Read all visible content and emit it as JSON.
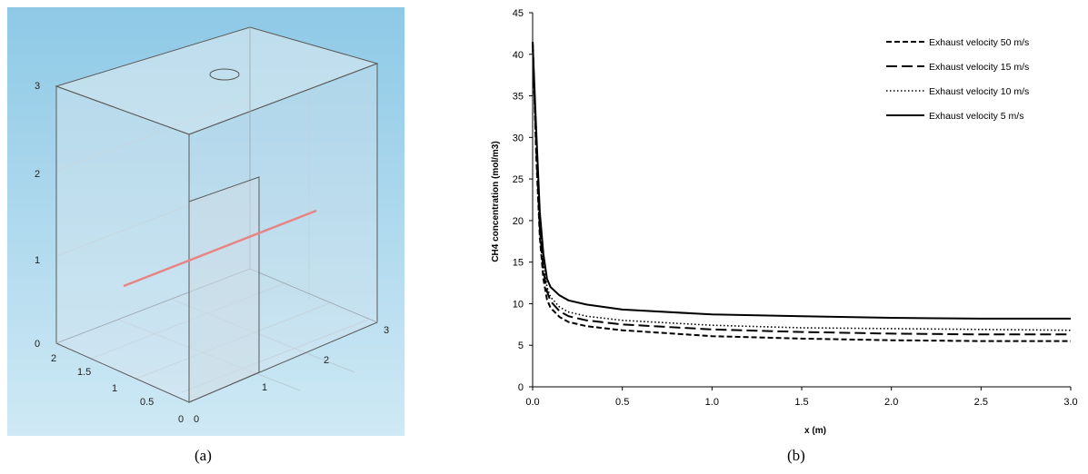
{
  "captions": {
    "a": "(a)",
    "b": "(b)"
  },
  "panel_a": {
    "colors": {
      "bg_top": "#8ec9e6",
      "bg_bottom": "#cfe9f5",
      "box_fill": "#d9e6ef",
      "edge": "#5a5a5a",
      "grid": "#b8c3cb",
      "line_probe": "#e88484"
    },
    "z_ticks": [
      "0",
      "1",
      "2",
      "3"
    ],
    "y_ticks": [
      "2",
      "1.5",
      "1",
      "0.5",
      "0"
    ],
    "x_ticks": [
      "0",
      "1",
      "2",
      "3"
    ]
  },
  "chart_data": {
    "type": "line",
    "title": "",
    "xlabel": "x (m)",
    "ylabel": "CH4 concentration (mol/m3)",
    "xlim": [
      0,
      3
    ],
    "ylim": [
      0,
      45
    ],
    "x_ticks": [
      "0.0",
      "0.5",
      "1.0",
      "1.5",
      "2.0",
      "2.5",
      "3.0"
    ],
    "y_ticks": [
      "0",
      "5",
      "10",
      "15",
      "20",
      "25",
      "30",
      "35",
      "40",
      "45"
    ],
    "legend_position": "top-right",
    "grid": false,
    "series": [
      {
        "name": "Exhaust velocity 50 m/s",
        "dash": "6,3",
        "x": [
          0,
          0.02,
          0.04,
          0.06,
          0.08,
          0.1,
          0.15,
          0.2,
          0.3,
          0.5,
          1.0,
          1.5,
          2.0,
          2.5,
          3.0
        ],
        "y": [
          41.5,
          28,
          18,
          13,
          10.5,
          9.5,
          8.4,
          7.8,
          7.3,
          6.8,
          6.1,
          5.8,
          5.6,
          5.5,
          5.5
        ]
      },
      {
        "name": "Exhaust velocity 15 m/s",
        "dash": "12,5",
        "x": [
          0,
          0.02,
          0.04,
          0.06,
          0.08,
          0.1,
          0.15,
          0.2,
          0.3,
          0.5,
          1.0,
          1.5,
          2.0,
          2.5,
          3.0
        ],
        "y": [
          41.5,
          29,
          19,
          14,
          11.5,
          10.3,
          9.1,
          8.5,
          8.0,
          7.5,
          6.9,
          6.6,
          6.4,
          6.3,
          6.3
        ]
      },
      {
        "name": "Exhaust velocity 10 m/s",
        "dash": "1.5,2.5",
        "x": [
          0,
          0.02,
          0.04,
          0.06,
          0.08,
          0.1,
          0.15,
          0.2,
          0.3,
          0.5,
          1.0,
          1.5,
          2.0,
          2.5,
          3.0
        ],
        "y": [
          41.5,
          30,
          20,
          15,
          12,
          10.8,
          9.6,
          9.0,
          8.5,
          8.0,
          7.4,
          7.1,
          7.0,
          6.9,
          6.8
        ]
      },
      {
        "name": "Exhaust velocity 5 m/s",
        "dash": "",
        "x": [
          0,
          0.02,
          0.04,
          0.06,
          0.08,
          0.1,
          0.15,
          0.2,
          0.3,
          0.5,
          1.0,
          1.5,
          2.0,
          2.5,
          3.0
        ],
        "y": [
          41.5,
          31,
          21,
          16,
          13,
          12,
          11,
          10.4,
          9.9,
          9.3,
          8.7,
          8.5,
          8.3,
          8.2,
          8.2
        ]
      }
    ]
  }
}
